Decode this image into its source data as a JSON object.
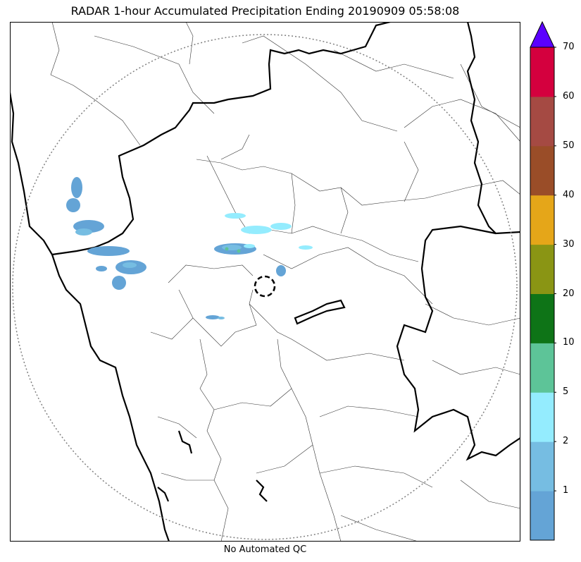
{
  "title": "RADAR 1-hour Accumulated Precipitation Ending 20190909 05:58:08",
  "footer_note": "No Automated QC",
  "colorbar": {
    "levels": [
      "1",
      "2",
      "5",
      "10",
      "20",
      "30",
      "40",
      "50",
      "60",
      "70"
    ],
    "colors": [
      "#64a4d6",
      "#76bde2",
      "#94ecfe",
      "#5dc498",
      "#0e7417",
      "#8a9514",
      "#e5a619",
      "#9a4d28",
      "#a54a43",
      "#d4003e"
    ],
    "extend_color": "#5b00ff"
  },
  "map": {
    "range_ring_color": "#808080",
    "state_border_color": "#000000",
    "district_border_color": "#333333",
    "precip_colors": {
      "light": "#64a4d6",
      "medium": "#76bde2",
      "cyan": "#94ecfe",
      "green": "#5dc498"
    }
  }
}
